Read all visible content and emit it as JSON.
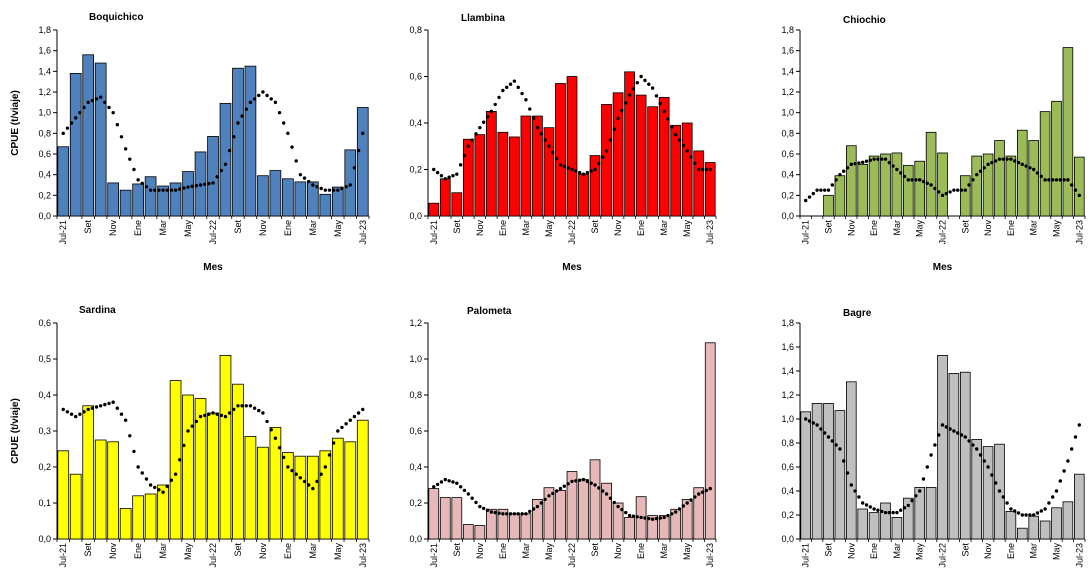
{
  "shared": {
    "xlabel": "Mes",
    "ylabel": "CPUE (t/viaje)",
    "xtick_labels": [
      "Jul-21",
      "Set",
      "Nov",
      "Ene",
      "Mar",
      "May",
      "Jul-22",
      "Set",
      "Nov",
      "Ene",
      "Mar",
      "May",
      "Jul-23"
    ]
  },
  "chart_data": [
    {
      "type": "bar",
      "title": "Boquichico",
      "categories": [
        "Jul-21",
        "Ago-21",
        "Set-21",
        "Oct-21",
        "Nov-21",
        "Dic-21",
        "Ene-22",
        "Feb-22",
        "Mar-22",
        "Abr-22",
        "May-22",
        "Jun-22",
        "Jul-22",
        "Ago-22",
        "Set-22",
        "Oct-22",
        "Nov-22",
        "Dic-22",
        "Ene-23",
        "Feb-23",
        "Mar-23",
        "Abr-23",
        "May-23",
        "Jun-23",
        "Jul-23"
      ],
      "values": [
        0.67,
        1.38,
        1.56,
        1.48,
        0.32,
        0.25,
        0.31,
        0.38,
        0.29,
        0.32,
        0.43,
        0.62,
        0.77,
        1.09,
        1.43,
        1.45,
        0.39,
        0.44,
        0.36,
        0.33,
        0.33,
        0.21,
        0.28,
        0.64,
        1.05
      ],
      "moving_avg": [
        0.8,
        0.95,
        1.1,
        1.15,
        1.0,
        0.65,
        0.35,
        0.25,
        0.25,
        0.25,
        0.28,
        0.3,
        0.32,
        0.5,
        0.9,
        1.1,
        1.2,
        1.1,
        0.8,
        0.4,
        0.3,
        0.25,
        0.25,
        0.3,
        0.8
      ],
      "ylim": [
        0,
        1.8
      ],
      "yticks": [
        "0,0",
        "0,2",
        "0,4",
        "0,6",
        "0,8",
        "1,0",
        "1,2",
        "1,4",
        "1,6",
        "1,8"
      ],
      "bar_color": "#4f81bd",
      "show_ylabel": true
    },
    {
      "type": "bar",
      "title": "Llambina",
      "categories": [
        "Jul-21",
        "Ago-21",
        "Set-21",
        "Oct-21",
        "Nov-21",
        "Dic-21",
        "Ene-22",
        "Feb-22",
        "Mar-22",
        "Abr-22",
        "May-22",
        "Jun-22",
        "Jul-22",
        "Ago-22",
        "Set-22",
        "Oct-22",
        "Nov-22",
        "Dic-22",
        "Ene-23",
        "Feb-23",
        "Mar-23",
        "Abr-23",
        "May-23",
        "Jun-23",
        "Jul-23"
      ],
      "values": [
        0.055,
        0.16,
        0.1,
        0.33,
        0.35,
        0.45,
        0.36,
        0.34,
        0.43,
        0.43,
        0.38,
        0.57,
        0.6,
        0.18,
        0.26,
        0.48,
        0.53,
        0.62,
        0.52,
        0.47,
        0.51,
        0.39,
        0.4,
        0.28,
        0.23
      ],
      "moving_avg": [
        0.2,
        0.16,
        0.18,
        0.3,
        0.38,
        0.45,
        0.54,
        0.58,
        0.5,
        0.38,
        0.3,
        0.22,
        0.2,
        0.18,
        0.2,
        0.28,
        0.42,
        0.52,
        0.6,
        0.55,
        0.45,
        0.35,
        0.28,
        0.2,
        0.2
      ],
      "ylim": [
        0,
        0.8
      ],
      "yticks": [
        "0,0",
        "0,2",
        "0,4",
        "0,6",
        "0,8"
      ],
      "bar_color": "#ff0000",
      "show_ylabel": false
    },
    {
      "type": "bar",
      "title": "Chiochio",
      "categories": [
        "Jul-21",
        "Ago-21",
        "Set-21",
        "Oct-21",
        "Nov-21",
        "Dic-21",
        "Ene-22",
        "Feb-22",
        "Mar-22",
        "Abr-22",
        "May-22",
        "Jun-22",
        "Jul-22",
        "Ago-22",
        "Set-22",
        "Oct-22",
        "Nov-22",
        "Dic-22",
        "Ene-23",
        "Feb-23",
        "Mar-23",
        "Abr-23",
        "May-23",
        "Jun-23",
        "Jul-23"
      ],
      "values": [
        0.0,
        0.0,
        0.2,
        0.39,
        0.68,
        0.5,
        0.58,
        0.6,
        0.61,
        0.49,
        0.53,
        0.81,
        0.61,
        0.0,
        0.39,
        0.58,
        0.6,
        0.73,
        0.58,
        0.83,
        0.73,
        1.01,
        1.11,
        1.63,
        0.57
      ],
      "moving_avg": [
        0.15,
        0.25,
        0.25,
        0.4,
        0.5,
        0.52,
        0.55,
        0.55,
        0.45,
        0.35,
        0.35,
        0.3,
        0.2,
        0.25,
        0.25,
        0.4,
        0.5,
        0.55,
        0.55,
        0.5,
        0.45,
        0.35,
        0.35,
        0.35,
        0.2
      ],
      "ylim": [
        0,
        1.8
      ],
      "yticks": [
        "0,0",
        "0,2",
        "0,4",
        "0,6",
        "0,8",
        "1,0",
        "1,2",
        "1,4",
        "1,6",
        "1,8"
      ],
      "bar_color": "#9bbb59",
      "show_ylabel": false
    },
    {
      "type": "bar",
      "title": "Sardina",
      "categories": [
        "Jul-21",
        "Ago-21",
        "Set-21",
        "Oct-21",
        "Nov-21",
        "Dic-21",
        "Ene-22",
        "Feb-22",
        "Mar-22",
        "Abr-22",
        "May-22",
        "Jun-22",
        "Jul-22",
        "Ago-22",
        "Set-22",
        "Oct-22",
        "Nov-22",
        "Dic-22",
        "Ene-23",
        "Feb-23",
        "Mar-23",
        "Abr-23",
        "May-23",
        "Jun-23",
        "Jul-23"
      ],
      "values": [
        0.245,
        0.18,
        0.37,
        0.275,
        0.27,
        0.085,
        0.12,
        0.125,
        0.15,
        0.44,
        0.4,
        0.39,
        0.35,
        0.51,
        0.43,
        0.285,
        0.255,
        0.31,
        0.24,
        0.23,
        0.23,
        0.245,
        0.28,
        0.27,
        0.33
      ],
      "moving_avg": [
        0.36,
        0.34,
        0.36,
        0.37,
        0.38,
        0.33,
        0.2,
        0.15,
        0.13,
        0.18,
        0.3,
        0.34,
        0.35,
        0.34,
        0.37,
        0.37,
        0.35,
        0.28,
        0.2,
        0.17,
        0.14,
        0.2,
        0.3,
        0.33,
        0.36
      ],
      "ylim": [
        0,
        0.6
      ],
      "yticks": [
        "0,0",
        "0,1",
        "0,2",
        "0,3",
        "0,4",
        "0,5",
        "0,6"
      ],
      "bar_color": "#ffff00",
      "show_ylabel": true
    },
    {
      "type": "bar",
      "title": "Palometa",
      "categories": [
        "Jul-21",
        "Ago-21",
        "Set-21",
        "Oct-21",
        "Nov-21",
        "Dic-21",
        "Ene-22",
        "Feb-22",
        "Mar-22",
        "Abr-22",
        "May-22",
        "Jun-22",
        "Jul-22",
        "Ago-22",
        "Set-22",
        "Oct-22",
        "Nov-22",
        "Dic-22",
        "Ene-23",
        "Feb-23",
        "Mar-23",
        "Abr-23",
        "May-23",
        "Jun-23",
        "Jul-23"
      ],
      "values": [
        0.28,
        0.23,
        0.23,
        0.08,
        0.075,
        0.165,
        0.165,
        0.14,
        0.14,
        0.22,
        0.285,
        0.27,
        0.375,
        0.33,
        0.44,
        0.31,
        0.2,
        0.12,
        0.235,
        0.13,
        0.13,
        0.165,
        0.22,
        0.285,
        1.09
      ],
      "moving_avg": [
        0.29,
        0.33,
        0.31,
        0.25,
        0.18,
        0.15,
        0.14,
        0.14,
        0.14,
        0.18,
        0.24,
        0.28,
        0.32,
        0.33,
        0.3,
        0.25,
        0.18,
        0.13,
        0.12,
        0.11,
        0.12,
        0.15,
        0.2,
        0.25,
        0.28
      ],
      "ylim": [
        0,
        1.2
      ],
      "yticks": [
        "0,0",
        "0,2",
        "0,4",
        "0,6",
        "0,8",
        "1,0",
        "1,2"
      ],
      "bar_color": "#e6b9b8",
      "show_ylabel": false
    },
    {
      "type": "bar",
      "title": "Bagre",
      "categories": [
        "Jul-21",
        "Ago-21",
        "Set-21",
        "Oct-21",
        "Nov-21",
        "Dic-21",
        "Ene-22",
        "Feb-22",
        "Mar-22",
        "Abr-22",
        "May-22",
        "Jun-22",
        "Jul-22",
        "Ago-22",
        "Set-22",
        "Oct-22",
        "Nov-22",
        "Dic-22",
        "Ene-23",
        "Feb-23",
        "Mar-23",
        "Abr-23",
        "May-23",
        "Jun-23",
        "Jul-23"
      ],
      "values": [
        1.06,
        1.13,
        1.13,
        1.07,
        1.31,
        0.25,
        0.22,
        0.3,
        0.18,
        0.34,
        0.43,
        0.43,
        1.53,
        1.38,
        1.39,
        0.83,
        0.77,
        0.79,
        0.23,
        0.09,
        0.19,
        0.15,
        0.26,
        0.31,
        0.54
      ],
      "moving_avg": [
        1.0,
        0.95,
        0.85,
        0.75,
        0.45,
        0.3,
        0.25,
        0.22,
        0.22,
        0.28,
        0.4,
        0.7,
        0.95,
        0.9,
        0.85,
        0.75,
        0.6,
        0.4,
        0.25,
        0.2,
        0.2,
        0.25,
        0.4,
        0.65,
        0.95
      ],
      "ylim": [
        0,
        1.8
      ],
      "yticks": [
        "0,0",
        "0,2",
        "0,4",
        "0,6",
        "0,8",
        "1,0",
        "1,2",
        "1,4",
        "1,6",
        "1,8"
      ],
      "bar_color": "#bfbfbf",
      "show_ylabel": false
    }
  ]
}
